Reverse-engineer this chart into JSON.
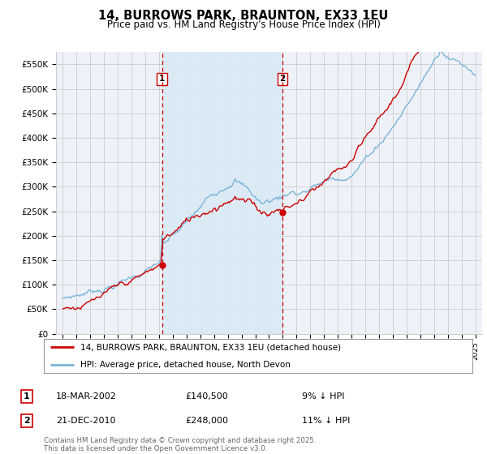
{
  "title": "14, BURROWS PARK, BRAUNTON, EX33 1EU",
  "subtitle": "Price paid vs. HM Land Registry's House Price Index (HPI)",
  "legend_line1": "14, BURROWS PARK, BRAUNTON, EX33 1EU (detached house)",
  "legend_line2": "HPI: Average price, detached house, North Devon",
  "sale1_date": "18-MAR-2002",
  "sale1_price": 140500,
  "sale1_hpi_diff": "9% ↓ HPI",
  "sale2_date": "21-DEC-2010",
  "sale2_price": 248000,
  "sale2_hpi_diff": "11% ↓ HPI",
  "sale1_x": 2002.21,
  "sale2_x": 2010.97,
  "ylabel_ticks": [
    0,
    50000,
    100000,
    150000,
    200000,
    250000,
    300000,
    350000,
    400000,
    450000,
    500000,
    550000
  ],
  "ylabel_labels": [
    "£0",
    "£50K",
    "£100K",
    "£150K",
    "£200K",
    "£250K",
    "£300K",
    "£350K",
    "£400K",
    "£450K",
    "£500K",
    "£550K"
  ],
  "hpi_color": "#7ab4d8",
  "hpi_fill_color": "#daeaf5",
  "price_color": "#cc0000",
  "vline_color": "#cc0000",
  "grid_color": "#cccccc",
  "background_color": "#ffffff",
  "plot_bg_color": "#eef2f8",
  "footnote": "Contains HM Land Registry data © Crown copyright and database right 2025.\nThis data is licensed under the Open Government Licence v3.0.",
  "xlim": [
    1994.5,
    2025.5
  ],
  "ylim": [
    0,
    575000
  ]
}
